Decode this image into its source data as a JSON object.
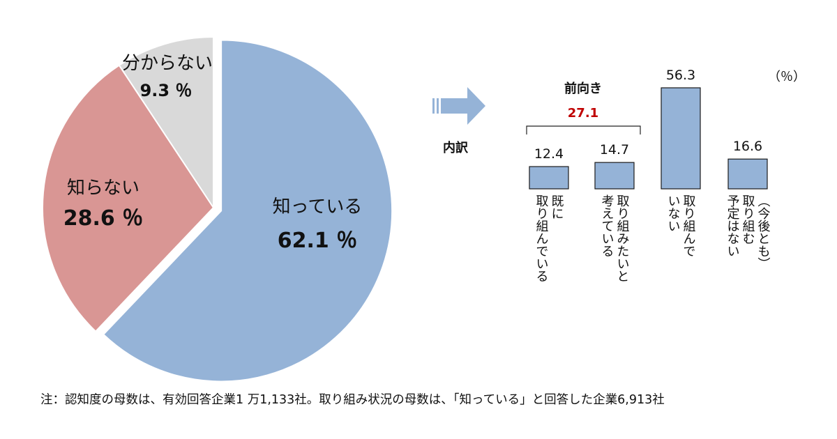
{
  "chart_data": [
    {
      "type": "pie",
      "slices": [
        {
          "label": "知っている",
          "value": 62.1,
          "value_label": "62.1 ％",
          "color": "#95b3d7",
          "exploded": true
        },
        {
          "label": "知らない",
          "value": 28.6,
          "value_label": "28.6 ％",
          "color": "#d99694"
        },
        {
          "label": "分からない",
          "value": 9.3,
          "value_label": "9.3 ％",
          "color": "#d9d9d9"
        }
      ]
    },
    {
      "type": "bar",
      "title": "内訳",
      "unit": "（％）",
      "categories": [
        "既に取り組んでいる",
        "取り組みたいと考えている",
        "取り組んでいない",
        "（今後とも）取り組む予定はない"
      ],
      "category_lines": [
        [
          "既に",
          "取り組んでいる"
        ],
        [
          "取り組みたいと",
          "考えている"
        ],
        [
          "取り組んで",
          "いない"
        ],
        [
          "（今後とも）",
          "取り組む",
          "予定はない"
        ]
      ],
      "values": [
        12.4,
        14.7,
        56.3,
        16.6
      ],
      "value_labels": [
        "12.4",
        "14.7",
        "56.3",
        "16.6"
      ],
      "bar_color": "#95b3d7",
      "group": {
        "label": "前向き",
        "value": "27.1",
        "value_color": "#c00000",
        "spans": [
          0,
          1
        ]
      }
    }
  ],
  "note": "注：認知度の母数は、有効回答企業1 万1,133社。取り組み状況の母数は、「知っている」と回答した企業6,913社"
}
